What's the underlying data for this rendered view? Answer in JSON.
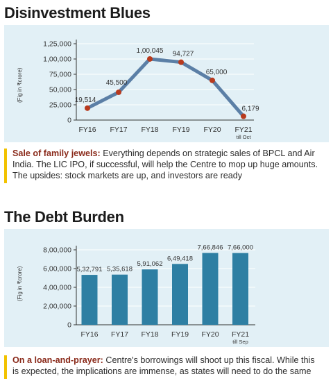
{
  "charts": {
    "disinvestment": {
      "title": "Disinvestment Blues",
      "ylabel": "(Fig in ₹crore)",
      "note_lead": "Sale of family jewels:",
      "note_text": "Everything depends on strategic sales of BPCL and Air India. The LIC IPO, if successful, will help the Centre to mop up huge amounts. The upsides: stock markets are up, and investors are ready"
    },
    "debt": {
      "title": "The Debt Burden",
      "ylabel": "(Fig in ₹crore)",
      "note_lead": "On a loan-and-prayer:",
      "note_text": "Centre's borrowings will shoot up this fiscal. While this is expected, the implications are immense, as states will need to do the same"
    }
  },
  "colors": {
    "panel_bg": "#e2f0f6",
    "line": "#5b7fa6",
    "marker": "#b83a1e",
    "bar": "#2e7fa3",
    "accent_bar": "#f2c200",
    "lead_text": "#8a2a1a"
  },
  "chart_data": [
    {
      "type": "line",
      "title": "Disinvestment Blues",
      "xlabel": "",
      "ylabel": "(Fig in ₹crore)",
      "categories": [
        "FY16",
        "FY17",
        "FY18",
        "FY19",
        "FY20",
        "FY21"
      ],
      "category_sublabels": [
        "",
        "",
        "",
        "",
        "",
        "till Oct"
      ],
      "values": [
        19514,
        45500,
        100045,
        94727,
        65000,
        6179
      ],
      "data_labels": [
        "19,514",
        "45,500",
        "1,00,045",
        "94,727",
        "65,000",
        "6,179"
      ],
      "yticks": [
        "0",
        "25,000",
        "50,000",
        "75,000",
        "1,00,000",
        "1,25,000"
      ],
      "ytick_values": [
        0,
        25000,
        50000,
        75000,
        100000,
        125000
      ],
      "ylim": [
        0,
        125000
      ],
      "grid": true
    },
    {
      "type": "bar",
      "title": "The Debt Burden",
      "xlabel": "",
      "ylabel": "(Fig in ₹crore)",
      "categories": [
        "FY16",
        "FY17",
        "FY18",
        "FY19",
        "FY20",
        "FY21"
      ],
      "category_sublabels": [
        "",
        "",
        "",
        "",
        "",
        "till Sep"
      ],
      "values": [
        532791,
        535618,
        591062,
        649418,
        766846,
        766000
      ],
      "data_labels": [
        "5,32,791",
        "5,35,618",
        "5,91,062",
        "6,49,418",
        "7,66,846",
        "7,66,000"
      ],
      "yticks": [
        "0",
        "2,00,000",
        "4,00,000",
        "6,00,000",
        "8,00,000"
      ],
      "ytick_values": [
        0,
        200000,
        400000,
        600000,
        800000
      ],
      "ylim": [
        0,
        800000
      ],
      "grid": true
    }
  ]
}
